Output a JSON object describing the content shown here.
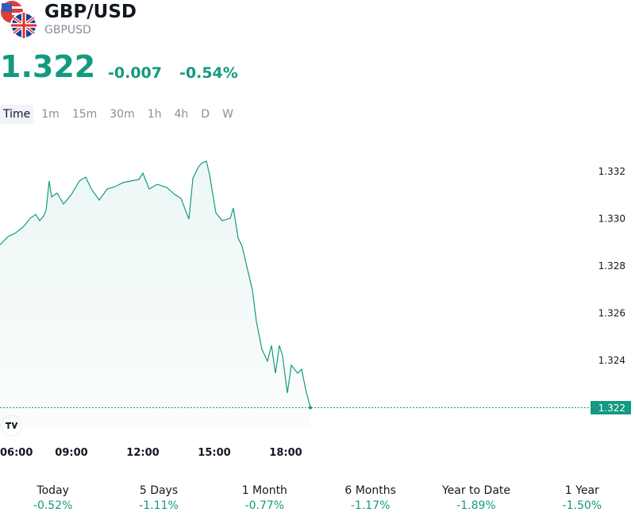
{
  "header": {
    "title": "GBP/USD",
    "symbol": "GBPUSD",
    "price": "1.322",
    "change": "-0.007",
    "change_pct": "-0.54%"
  },
  "timeframes": [
    "Time",
    "1m",
    "15m",
    "30m",
    "1h",
    "4h",
    "D",
    "W"
  ],
  "chart_data": {
    "type": "area",
    "color": "#139a80",
    "x": [
      6,
      6.333,
      6.667,
      7,
      7.267,
      7.5,
      7.667,
      7.833,
      7.933,
      8.067,
      8.167,
      8.4,
      8.667,
      9,
      9.333,
      9.6,
      9.833,
      10.167,
      10.5,
      10.833,
      11.167,
      11.5,
      11.833,
      12,
      12.267,
      12.6,
      13,
      13.333,
      13.6,
      13.933,
      14.1,
      14.333,
      14.5,
      14.667,
      14.8,
      15.067,
      15.333,
      15.667,
      15.8,
      16,
      16.167,
      16.4,
      16.6,
      16.767,
      17,
      17.233,
      17.4,
      17.567,
      17.733,
      17.867,
      18.067,
      18.233,
      18.5,
      18.667,
      18.833,
      19.033
    ],
    "values": [
      1.3289,
      1.32924,
      1.32941,
      1.32968,
      1.33002,
      1.33018,
      1.32992,
      1.33012,
      1.33035,
      1.3316,
      1.33092,
      1.33109,
      1.33062,
      1.33103,
      1.3316,
      1.33176,
      1.33126,
      1.33079,
      1.33126,
      1.33136,
      1.33153,
      1.3316,
      1.33166,
      1.33193,
      1.33126,
      1.33146,
      1.33133,
      1.33103,
      1.33086,
      1.32998,
      1.3317,
      1.3322,
      1.33237,
      1.33244,
      1.33187,
      1.33025,
      1.32992,
      1.33002,
      1.33045,
      1.32918,
      1.32884,
      1.32783,
      1.32699,
      1.32565,
      1.32447,
      1.32397,
      1.32464,
      1.32346,
      1.32464,
      1.3242,
      1.32262,
      1.3238,
      1.32346,
      1.32363,
      1.32279,
      1.322
    ],
    "xlim": [
      6,
      30.7
    ],
    "xticks": [
      {
        "value": 6,
        "label": "06:00"
      },
      {
        "value": 9,
        "label": "09:00"
      },
      {
        "value": 12,
        "label": "12:00"
      },
      {
        "value": 15,
        "label": "15:00"
      },
      {
        "value": 18,
        "label": "18:00"
      }
    ],
    "ylim": [
      1.32111,
      1.33321
    ],
    "yticks": [
      1.324,
      1.326,
      1.328,
      {
        "value": 1.33,
        "label": "1.330"
      },
      1.332
    ],
    "last_price": 1.322,
    "grid": false
  },
  "performance": [
    {
      "label": "Today",
      "value": "-0.52%"
    },
    {
      "label": "5 Days",
      "value": "-1.11%"
    },
    {
      "label": "1 Month",
      "value": "-0.77%"
    },
    {
      "label": "6 Months",
      "value": "-1.17%"
    },
    {
      "label": "Year to Date",
      "value": "-1.89%"
    },
    {
      "label": "1 Year",
      "value": "-1.50%"
    }
  ]
}
